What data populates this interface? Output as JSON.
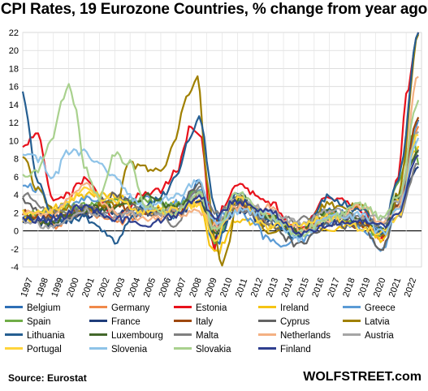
{
  "title": "CPI Rates, 19 Eurozone Countries, % change from year ago",
  "source": "Source: Eurostat",
  "brand": "WOLFSTREET.com",
  "chart_data": {
    "type": "line",
    "title": "CPI Rates, 19 Eurozone Countries, % change from year ago",
    "ylim": [
      -4,
      22
    ],
    "yticks": [
      -4,
      -2,
      0,
      2,
      4,
      6,
      8,
      10,
      12,
      14,
      16,
      18,
      20,
      22
    ],
    "xlim": [
      1997,
      2023
    ],
    "xticks": [
      1997,
      1998,
      1999,
      2000,
      2001,
      2002,
      2003,
      2004,
      2005,
      2006,
      2007,
      2008,
      2009,
      2010,
      2011,
      2012,
      2013,
      2014,
      2015,
      2016,
      2017,
      2018,
      2019,
      2020,
      2021,
      2022
    ],
    "grid": true,
    "legend_position": "bottom",
    "series": [
      {
        "name": "Belgium",
        "color": "#2e6fb5",
        "x": [
          1997,
          1999,
          2001,
          2003,
          2005,
          2007,
          2008.5,
          2009.5,
          2011,
          2013,
          2015,
          2017,
          2019,
          2020.5,
          2021.5,
          2022.8
        ],
        "values": [
          1.5,
          1.0,
          2.4,
          1.5,
          2.5,
          1.8,
          5.4,
          -1.7,
          3.5,
          1.2,
          0.6,
          2.2,
          1.3,
          0.3,
          3.0,
          12.3
        ]
      },
      {
        "name": "Germany",
        "color": "#f0894a",
        "x": [
          1997,
          1999,
          2001,
          2003,
          2005,
          2007,
          2008.5,
          2009.5,
          2011,
          2013,
          2015,
          2017,
          2019,
          2020.5,
          2021.5,
          2022.8
        ],
        "values": [
          1.5,
          0.6,
          2.0,
          1.0,
          1.9,
          2.3,
          3.3,
          0.0,
          2.5,
          1.6,
          0.1,
          1.7,
          1.4,
          -0.7,
          4.0,
          11.6
        ]
      },
      {
        "name": "Estonia",
        "color": "#e8111b",
        "x": [
          1997,
          1998,
          1999,
          2000,
          2001,
          2003,
          2005,
          2006,
          2007,
          2008,
          2008.5,
          2009.5,
          2010,
          2011,
          2012,
          2013,
          2015,
          2017,
          2018,
          2019,
          2020.5,
          2021.5,
          2022,
          2022.8
        ],
        "values": [
          9.5,
          10.5,
          3.0,
          4.0,
          5.6,
          1.4,
          4.1,
          4.4,
          6.7,
          11.6,
          11.0,
          -2.0,
          2.8,
          5.1,
          4.2,
          3.2,
          0.1,
          3.7,
          3.4,
          2.3,
          -0.7,
          6.0,
          15.0,
          22.0
        ]
      },
      {
        "name": "Ireland",
        "color": "#f5c414",
        "x": [
          1997,
          1999,
          2001,
          2003,
          2005,
          2007,
          2008.5,
          2009.5,
          2011,
          2013,
          2015,
          2017,
          2019,
          2020.5,
          2021.5,
          2022.8
        ],
        "values": [
          1.2,
          2.5,
          4.0,
          4.0,
          2.2,
          2.9,
          3.1,
          -2.6,
          1.2,
          0.5,
          0.0,
          0.3,
          0.9,
          -1.2,
          3.5,
          9.4
        ]
      },
      {
        "name": "Greece",
        "color": "#5b9bd5",
        "x": [
          1997,
          1998,
          1999,
          2000,
          2001,
          2003,
          2005,
          2007,
          2008.5,
          2009.5,
          2011,
          2012,
          2013,
          2014,
          2015,
          2017,
          2019,
          2020.5,
          2021.5,
          2022.8
        ],
        "values": [
          5.4,
          4.5,
          2.1,
          3.0,
          3.5,
          3.4,
          3.5,
          3.0,
          4.4,
          1.3,
          3.1,
          1.0,
          -1.0,
          -1.5,
          -1.1,
          1.1,
          0.5,
          -2.3,
          3.0,
          12.1
        ]
      },
      {
        "name": "Spain",
        "color": "#70ad47",
        "x": [
          1997,
          1999,
          2001,
          2003,
          2005,
          2007,
          2008.5,
          2009.5,
          2011,
          2013,
          2015,
          2017,
          2019,
          2020.5,
          2021.5,
          2022.5,
          2022.8
        ],
        "values": [
          1.9,
          2.2,
          2.8,
          3.1,
          3.4,
          2.8,
          4.6,
          -1.0,
          3.1,
          1.5,
          -0.6,
          2.0,
          0.8,
          -0.8,
          5.5,
          10.7,
          7.3
        ]
      },
      {
        "name": "France",
        "color": "#1f3d7a",
        "x": [
          1997,
          1999,
          2001,
          2003,
          2005,
          2007,
          2008.5,
          2009.5,
          2011,
          2013,
          2015,
          2017,
          2019,
          2020.5,
          2021.5,
          2022.8
        ],
        "values": [
          1.3,
          0.6,
          1.8,
          2.2,
          1.9,
          1.6,
          3.6,
          -0.6,
          2.3,
          1.0,
          0.1,
          1.2,
          1.3,
          0.0,
          2.8,
          7.1
        ]
      },
      {
        "name": "Italy",
        "color": "#9e480e",
        "x": [
          1997,
          1999,
          2001,
          2003,
          2005,
          2007,
          2008.5,
          2009.5,
          2011,
          2013,
          2015,
          2017,
          2019,
          2020.5,
          2021.5,
          2022.8
        ],
        "values": [
          1.9,
          1.7,
          2.3,
          2.8,
          2.2,
          2.0,
          4.0,
          0.8,
          2.9,
          1.2,
          0.1,
          1.3,
          0.6,
          -0.3,
          3.0,
          12.6
        ]
      },
      {
        "name": "Cyprus",
        "color": "#636363",
        "x": [
          1997,
          1999,
          2001,
          2003,
          2005,
          2007,
          2008.5,
          2009.5,
          2011,
          2013,
          2015,
          2017,
          2019,
          2020.5,
          2021.5,
          2022.8
        ],
        "values": [
          3.3,
          1.1,
          2.0,
          4.0,
          2.0,
          2.2,
          5.3,
          0.2,
          3.5,
          0.4,
          -1.5,
          0.7,
          0.5,
          -2.0,
          4.0,
          9.0
        ]
      },
      {
        "name": "Latvia",
        "color": "#a08000",
        "x": [
          1997,
          1998,
          1999,
          2000,
          2001,
          2003,
          2004,
          2005,
          2006,
          2007,
          2007.5,
          2008,
          2008.4,
          2009,
          2009.5,
          2010,
          2010.5,
          2011,
          2013,
          2015,
          2017,
          2019,
          2020.5,
          2021.5,
          2022.8
        ],
        "values": [
          8.0,
          4.5,
          2.1,
          2.6,
          2.5,
          2.9,
          7.4,
          6.9,
          6.6,
          10.0,
          14.0,
          16.0,
          17.5,
          6.0,
          -1.0,
          -3.5,
          -1.0,
          4.2,
          0.0,
          0.2,
          2.9,
          2.7,
          -0.5,
          4.0,
          21.8
        ]
      },
      {
        "name": "Lithuania",
        "color": "#255e91",
        "x": [
          1997,
          1998,
          1999,
          2000,
          2001,
          2002,
          2003,
          2004,
          2005,
          2006,
          2007,
          2008,
          2008.5,
          2009.5,
          2010,
          2011,
          2013,
          2015,
          2017,
          2019,
          2020.5,
          2021.5,
          2022.8
        ],
        "values": [
          15.2,
          5.0,
          1.5,
          1.1,
          1.6,
          0.3,
          -1.1,
          1.2,
          2.7,
          3.8,
          5.8,
          10.5,
          12.5,
          3.0,
          -0.3,
          4.1,
          1.2,
          -0.7,
          3.7,
          2.2,
          -0.1,
          6.0,
          22.0
        ]
      },
      {
        "name": "Luxembourg",
        "color": "#43682b",
        "x": [
          1997,
          1999,
          2001,
          2003,
          2005,
          2007,
          2008.5,
          2009.5,
          2011,
          2013,
          2015,
          2017,
          2019,
          2020.5,
          2021.5,
          2022.8
        ],
        "values": [
          1.4,
          1.0,
          2.4,
          2.5,
          3.8,
          2.7,
          4.1,
          -0.1,
          3.7,
          1.7,
          0.1,
          2.1,
          1.6,
          -0.1,
          4.0,
          8.8
        ]
      },
      {
        "name": "Malta",
        "color": "#7f7f7f",
        "x": [
          1997,
          1999,
          2001,
          2003,
          2005,
          2007,
          2008.5,
          2009.5,
          2011,
          2013,
          2015,
          2017,
          2019,
          2020.5,
          2021.5,
          2022.8
        ],
        "values": [
          3.9,
          2.3,
          2.5,
          1.9,
          2.5,
          0.7,
          4.7,
          2.1,
          2.5,
          1.0,
          1.2,
          1.3,
          1.5,
          0.6,
          1.5,
          7.4
        ]
      },
      {
        "name": "Netherlands",
        "color": "#f4b183",
        "x": [
          1997,
          1999,
          2001,
          2003,
          2005,
          2007,
          2008.5,
          2009.5,
          2011,
          2013,
          2015,
          2017,
          2019,
          2020.5,
          2021.5,
          2022.8
        ],
        "values": [
          1.9,
          2.0,
          5.1,
          2.2,
          1.5,
          1.6,
          2.2,
          0.5,
          2.5,
          2.6,
          0.2,
          1.3,
          2.7,
          1.0,
          2.8,
          17.1
        ]
      },
      {
        "name": "Austria",
        "color": "#a5a5a5",
        "x": [
          1997,
          1999,
          2001,
          2003,
          2005,
          2007,
          2008.5,
          2009.5,
          2011,
          2013,
          2015,
          2017,
          2019,
          2020.5,
          2021.5,
          2022.8
        ],
        "values": [
          1.2,
          0.5,
          2.3,
          1.3,
          2.1,
          2.2,
          3.9,
          0.4,
          3.6,
          2.1,
          0.8,
          2.2,
          1.5,
          1.3,
          3.5,
          11.0
        ]
      },
      {
        "name": "Portugal",
        "color": "#ffd43b",
        "x": [
          1997,
          1999,
          2001,
          2003,
          2005,
          2007,
          2008.5,
          2009.5,
          2011,
          2013,
          2015,
          2017,
          2019,
          2020.5,
          2021.5,
          2022.8
        ],
        "values": [
          1.9,
          2.2,
          4.4,
          3.3,
          2.1,
          2.4,
          3.0,
          -0.9,
          3.6,
          0.4,
          0.5,
          1.6,
          0.3,
          -0.1,
          1.8,
          10.6
        ]
      },
      {
        "name": "Slovenia",
        "color": "#8ec3e8",
        "x": [
          1997,
          1998,
          1999,
          2000,
          2001,
          2002,
          2003,
          2005,
          2007,
          2008.5,
          2009.5,
          2011,
          2013,
          2015,
          2017,
          2019,
          2020.5,
          2021.5,
          2022.8
        ],
        "values": [
          8.3,
          7.9,
          6.1,
          8.9,
          8.6,
          7.5,
          5.7,
          2.5,
          3.8,
          5.5,
          0.9,
          2.1,
          1.9,
          -0.8,
          1.6,
          1.7,
          -0.3,
          2.5,
          10.3
        ]
      },
      {
        "name": "Slovakia",
        "color": "#a9d18e",
        "x": [
          1997,
          1998,
          1999,
          1999.5,
          2000,
          2000.5,
          2001,
          2002,
          2003,
          2004,
          2005,
          2007,
          2008.5,
          2009.5,
          2011,
          2013,
          2015,
          2017,
          2019,
          2020.5,
          2021.5,
          2022.8
        ],
        "values": [
          6.0,
          6.7,
          10.4,
          14.0,
          16.5,
          13.0,
          7.2,
          3.5,
          8.4,
          7.5,
          2.8,
          1.9,
          4.4,
          0.0,
          4.1,
          1.5,
          -0.3,
          1.4,
          2.8,
          1.5,
          4.0,
          14.5
        ]
      },
      {
        "name": "Finland",
        "color": "#2f3f8f",
        "x": [
          1997,
          1999,
          2001,
          2003,
          2005,
          2007,
          2008.5,
          2009.5,
          2011,
          2013,
          2015,
          2017,
          2019,
          2020.5,
          2021.5,
          2022.8
        ],
        "values": [
          1.2,
          1.3,
          2.7,
          1.3,
          0.8,
          1.6,
          3.9,
          1.6,
          3.3,
          2.2,
          -0.2,
          0.8,
          1.1,
          0.4,
          2.2,
          8.4
        ]
      }
    ]
  }
}
